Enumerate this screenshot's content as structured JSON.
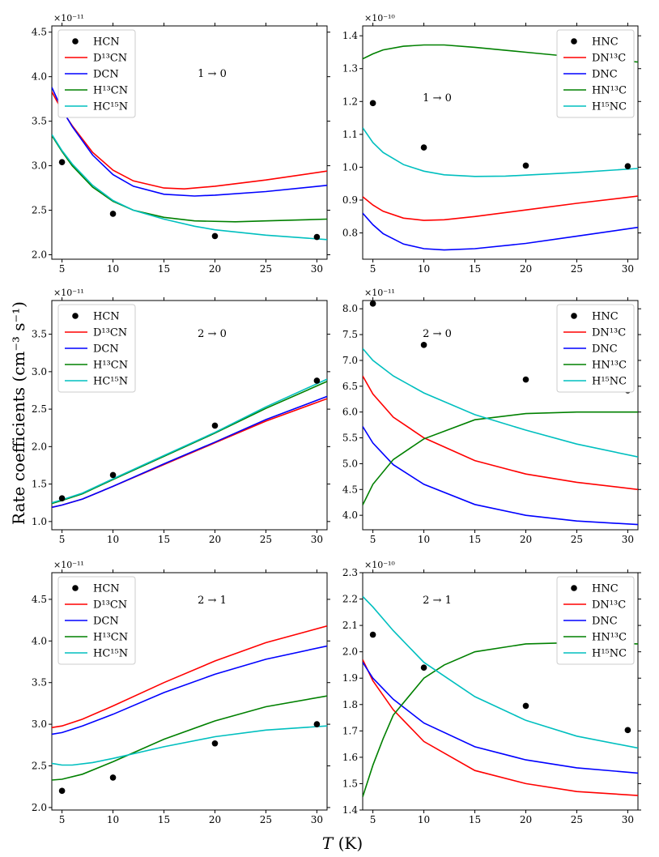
{
  "figure": {
    "ylabel": "Rate coefficients (cm⁻³ s⁻¹)",
    "xlabel_var": "T",
    "xlabel_unit": " (K)"
  },
  "chart_data": [
    {
      "type": "line",
      "position": "top-left",
      "transition": "1 → 0",
      "scale_label": "×10⁻¹¹",
      "scale": 1e-11,
      "xlim": [
        4,
        31
      ],
      "ylim": [
        1.95,
        4.57
      ],
      "xticks": [
        5,
        10,
        15,
        20,
        25,
        30
      ],
      "yticks": [
        2.0,
        2.5,
        3.0,
        3.5,
        4.0,
        4.5
      ],
      "points": {
        "name": "HCN",
        "x": [
          5,
          10,
          20,
          30
        ],
        "y": [
          3.04,
          2.46,
          2.21,
          2.2
        ]
      },
      "series": [
        {
          "name": "D¹³CN",
          "color": "#ff0000",
          "x": [
            4,
            5,
            6,
            8,
            10,
            12,
            15,
            17,
            20,
            25,
            31
          ],
          "y": [
            3.83,
            3.62,
            3.45,
            3.15,
            2.95,
            2.83,
            2.75,
            2.74,
            2.77,
            2.84,
            2.94
          ]
        },
        {
          "name": "DCN",
          "color": "#0000ff",
          "x": [
            4,
            5,
            6,
            8,
            10,
            12,
            15,
            18,
            20,
            25,
            31
          ],
          "y": [
            3.88,
            3.63,
            3.44,
            3.12,
            2.9,
            2.77,
            2.68,
            2.66,
            2.67,
            2.71,
            2.78
          ]
        },
        {
          "name": "H¹³CN",
          "color": "#008000",
          "x": [
            4,
            5,
            6,
            8,
            10,
            12,
            15,
            18,
            22,
            25,
            31
          ],
          "y": [
            3.34,
            3.16,
            3.0,
            2.76,
            2.6,
            2.5,
            2.42,
            2.38,
            2.37,
            2.38,
            2.4
          ]
        },
        {
          "name": "HC¹⁵N",
          "color": "#00bfbf",
          "x": [
            4,
            5,
            6,
            8,
            10,
            12,
            15,
            18,
            20,
            25,
            31
          ],
          "y": [
            3.35,
            3.17,
            3.02,
            2.78,
            2.61,
            2.5,
            2.4,
            2.32,
            2.28,
            2.22,
            2.17
          ]
        }
      ]
    },
    {
      "type": "line",
      "position": "top-right",
      "transition": "1 → 0",
      "scale_label": "×10⁻¹⁰",
      "scale": 1e-10,
      "xlim": [
        4,
        31
      ],
      "ylim": [
        0.72,
        1.43
      ],
      "xticks": [
        5,
        10,
        15,
        20,
        25,
        30
      ],
      "yticks": [
        0.8,
        0.9,
        1.0,
        1.1,
        1.2,
        1.3,
        1.4
      ],
      "points": {
        "name": "HNC",
        "x": [
          5,
          10,
          20,
          30
        ],
        "y": [
          1.195,
          1.06,
          1.005,
          1.003
        ]
      },
      "series": [
        {
          "name": "DN¹³C",
          "color": "#ff0000",
          "x": [
            4,
            5,
            6,
            8,
            10,
            12,
            15,
            20,
            25,
            31
          ],
          "y": [
            0.91,
            0.885,
            0.866,
            0.845,
            0.838,
            0.84,
            0.85,
            0.87,
            0.89,
            0.912
          ]
        },
        {
          "name": "DNC",
          "color": "#0000ff",
          "x": [
            4,
            5,
            6,
            8,
            10,
            12,
            15,
            20,
            25,
            31
          ],
          "y": [
            0.86,
            0.825,
            0.798,
            0.766,
            0.752,
            0.748,
            0.752,
            0.768,
            0.79,
            0.817
          ]
        },
        {
          "name": "HN¹³C",
          "color": "#008000",
          "x": [
            4,
            5,
            6,
            8,
            10,
            12,
            15,
            20,
            25,
            31
          ],
          "y": [
            1.33,
            1.345,
            1.357,
            1.368,
            1.372,
            1.372,
            1.365,
            1.35,
            1.335,
            1.32
          ]
        },
        {
          "name": "H¹⁵NC",
          "color": "#00bfbf",
          "x": [
            4,
            5,
            6,
            8,
            10,
            12,
            15,
            18,
            20,
            25,
            31
          ],
          "y": [
            1.12,
            1.075,
            1.045,
            1.008,
            0.988,
            0.977,
            0.972,
            0.973,
            0.976,
            0.984,
            0.996
          ]
        }
      ]
    },
    {
      "type": "line",
      "position": "middle-left",
      "transition": "2 → 0",
      "scale_label": "×10⁻¹¹",
      "scale": 1e-11,
      "xlim": [
        4,
        31
      ],
      "ylim": [
        0.89,
        3.95
      ],
      "xticks": [
        5,
        10,
        15,
        20,
        25,
        30
      ],
      "yticks": [
        1.0,
        1.5,
        2.0,
        2.5,
        3.0,
        3.5
      ],
      "points": {
        "name": "HCN",
        "x": [
          5,
          10,
          20,
          30
        ],
        "y": [
          1.31,
          1.62,
          2.28,
          2.88
        ]
      },
      "series": [
        {
          "name": "D¹³CN",
          "color": "#ff0000",
          "x": [
            4,
            5,
            7,
            10,
            15,
            20,
            25,
            31
          ],
          "y": [
            1.19,
            1.22,
            1.3,
            1.47,
            1.76,
            2.05,
            2.34,
            2.64
          ]
        },
        {
          "name": "DCN",
          "color": "#0000ff",
          "x": [
            4,
            5,
            7,
            10,
            15,
            20,
            25,
            31
          ],
          "y": [
            1.19,
            1.22,
            1.3,
            1.47,
            1.77,
            2.06,
            2.36,
            2.67
          ]
        },
        {
          "name": "H¹³CN",
          "color": "#008000",
          "x": [
            4,
            5,
            7,
            10,
            15,
            20,
            25,
            31
          ],
          "y": [
            1.24,
            1.28,
            1.37,
            1.56,
            1.87,
            2.18,
            2.51,
            2.87
          ]
        },
        {
          "name": "HC¹⁵N",
          "color": "#00bfbf",
          "x": [
            4,
            5,
            7,
            10,
            15,
            20,
            25,
            31
          ],
          "y": [
            1.25,
            1.29,
            1.38,
            1.57,
            1.88,
            2.19,
            2.53,
            2.9
          ]
        }
      ]
    },
    {
      "type": "line",
      "position": "middle-right",
      "transition": "2 → 0",
      "scale_label": "×10⁻¹¹",
      "scale": 1e-11,
      "xlim": [
        4,
        31
      ],
      "ylim": [
        3.72,
        8.16
      ],
      "xticks": [
        5,
        10,
        15,
        20,
        25,
        30
      ],
      "yticks": [
        4.0,
        4.5,
        5.0,
        5.5,
        6.0,
        6.5,
        7.0,
        7.5,
        8.0
      ],
      "points": {
        "name": "HNC",
        "x": [
          5,
          10,
          20,
          30
        ],
        "y": [
          8.1,
          7.3,
          6.63,
          6.42
        ]
      },
      "series": [
        {
          "name": "DN¹³C",
          "color": "#ff0000",
          "x": [
            4,
            5,
            7,
            10,
            15,
            20,
            25,
            31
          ],
          "y": [
            6.7,
            6.35,
            5.9,
            5.5,
            5.06,
            4.8,
            4.64,
            4.5
          ]
        },
        {
          "name": "DNC",
          "color": "#0000ff",
          "x": [
            4,
            5,
            7,
            10,
            15,
            20,
            25,
            31
          ],
          "y": [
            5.72,
            5.4,
            4.98,
            4.6,
            4.21,
            4.0,
            3.89,
            3.82
          ]
        },
        {
          "name": "HN¹³C",
          "color": "#008000",
          "x": [
            4,
            5,
            7,
            10,
            15,
            20,
            25,
            31
          ],
          "y": [
            4.2,
            4.6,
            5.08,
            5.48,
            5.85,
            5.97,
            6.0,
            6.0
          ]
        },
        {
          "name": "H¹⁵NC",
          "color": "#00bfbf",
          "x": [
            4,
            5,
            7,
            10,
            15,
            20,
            25,
            31
          ],
          "y": [
            7.23,
            7.0,
            6.7,
            6.37,
            5.95,
            5.65,
            5.38,
            5.13
          ]
        }
      ]
    },
    {
      "type": "line",
      "position": "bottom-left",
      "transition": "2 → 1",
      "scale_label": "×10⁻¹¹",
      "scale": 1e-11,
      "xlim": [
        4,
        31
      ],
      "ylim": [
        1.97,
        4.82
      ],
      "xticks": [
        5,
        10,
        15,
        20,
        25,
        30
      ],
      "yticks": [
        2.0,
        2.5,
        3.0,
        3.5,
        4.0,
        4.5
      ],
      "points": {
        "name": "HCN",
        "x": [
          5,
          10,
          20,
          30
        ],
        "y": [
          2.2,
          2.36,
          2.77,
          3.0
        ]
      },
      "series": [
        {
          "name": "D¹³CN",
          "color": "#ff0000",
          "x": [
            4,
            5,
            7,
            10,
            15,
            20,
            25,
            31
          ],
          "y": [
            2.96,
            2.98,
            3.06,
            3.22,
            3.5,
            3.76,
            3.98,
            4.18
          ]
        },
        {
          "name": "DCN",
          "color": "#0000ff",
          "x": [
            4,
            5,
            7,
            10,
            15,
            20,
            25,
            31
          ],
          "y": [
            2.88,
            2.9,
            2.98,
            3.12,
            3.38,
            3.6,
            3.78,
            3.94
          ]
        },
        {
          "name": "H¹³CN",
          "color": "#008000",
          "x": [
            4,
            5,
            7,
            10,
            15,
            20,
            25,
            31
          ],
          "y": [
            2.33,
            2.34,
            2.4,
            2.55,
            2.82,
            3.04,
            3.21,
            3.34
          ]
        },
        {
          "name": "HC¹⁵N",
          "color": "#00bfbf",
          "x": [
            4,
            5,
            6,
            8,
            10,
            15,
            20,
            25,
            31
          ],
          "y": [
            2.53,
            2.51,
            2.51,
            2.54,
            2.59,
            2.73,
            2.85,
            2.93,
            2.98
          ]
        }
      ]
    },
    {
      "type": "line",
      "position": "bottom-right",
      "transition": "2 → 1",
      "scale_label": "×10⁻¹⁰",
      "scale": 1e-10,
      "xlim": [
        4,
        31
      ],
      "ylim": [
        1.4,
        2.3
      ],
      "xticks": [
        5,
        10,
        15,
        20,
        25,
        30
      ],
      "yticks": [
        1.4,
        1.5,
        1.6,
        1.7,
        1.8,
        1.9,
        2.0,
        2.1,
        2.2,
        2.3
      ],
      "points": {
        "name": "HNC",
        "x": [
          5,
          10,
          20,
          30
        ],
        "y": [
          2.065,
          1.94,
          1.795,
          1.703
        ]
      },
      "series": [
        {
          "name": "DN¹³C",
          "color": "#ff0000",
          "x": [
            4,
            5,
            7,
            10,
            15,
            20,
            25,
            31
          ],
          "y": [
            1.97,
            1.89,
            1.78,
            1.66,
            1.55,
            1.5,
            1.47,
            1.455
          ]
        },
        {
          "name": "DNC",
          "color": "#0000ff",
          "x": [
            4,
            5,
            7,
            10,
            15,
            20,
            25,
            31
          ],
          "y": [
            1.96,
            1.9,
            1.82,
            1.73,
            1.64,
            1.59,
            1.56,
            1.54
          ]
        },
        {
          "name": "HN¹³C",
          "color": "#008000",
          "x": [
            4,
            5,
            6,
            7,
            10,
            12,
            15,
            20,
            25,
            31
          ],
          "y": [
            1.45,
            1.57,
            1.67,
            1.76,
            1.9,
            1.95,
            2.0,
            2.03,
            2.035,
            2.03
          ]
        },
        {
          "name": "H¹⁵NC",
          "color": "#00bfbf",
          "x": [
            4,
            5,
            7,
            10,
            15,
            20,
            25,
            31
          ],
          "y": [
            2.21,
            2.17,
            2.08,
            1.96,
            1.83,
            1.74,
            1.68,
            1.635
          ]
        }
      ]
    }
  ]
}
